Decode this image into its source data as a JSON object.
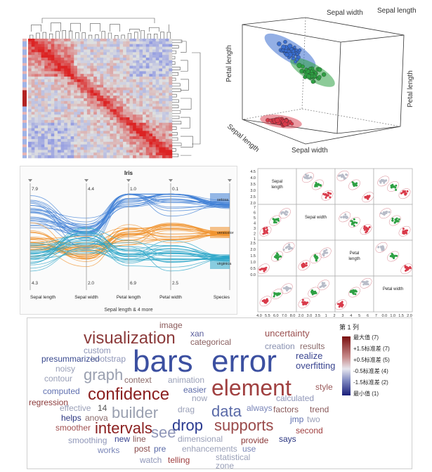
{
  "colors": {
    "setosa": "#3a6ecf",
    "versicolor": "#2ea043",
    "virginica": "#d93a4a",
    "pc_setosa": "#3f7fd6",
    "pc_versicolor": "#f0922b",
    "pc_virginica": "#29a5c8",
    "cloud_high": "#8b1a1a",
    "cloud_low": "#1a2a8b"
  },
  "chart_data": [
    {
      "type": "heatmap",
      "panel": "clustered-correlation-heatmap",
      "colormap": [
        "blue",
        "white",
        "red"
      ],
      "diagonal": "high",
      "dendrograms": [
        "top",
        "right"
      ]
    },
    {
      "type": "scatter",
      "panel": "iris-3d-scatter",
      "axes": {
        "x_label": "Sepal width",
        "x_label_2": "Sepal length",
        "y_label": "Petal length",
        "y_label_2": "Petal length",
        "z_label": "Sepal length",
        "z_label_2": "Sepal width"
      },
      "groups": [
        "setosa",
        "versicolor",
        "virginica"
      ]
    },
    {
      "type": "line",
      "panel": "parallel-coordinates",
      "title": "Iris",
      "axes": [
        "Sepal length",
        "Sepal width",
        "Petal length",
        "Petal width",
        "Species"
      ],
      "top_labels": [
        "7.9",
        "4.4",
        "1.0",
        "0.1",
        ""
      ],
      "bottom_labels": [
        "4.3",
        "2.0",
        "6.9",
        "2.5",
        ""
      ],
      "species": [
        "setosa",
        "versicolor",
        "virginica"
      ],
      "subtitle": "Sepal length & 4 more"
    },
    {
      "type": "scatter",
      "panel": "scatterplot-matrix",
      "variables": [
        "Sepal length",
        "Sepal width",
        "Petal length",
        "Petal width"
      ],
      "diagonal_labels": [
        "Sepal\nlength",
        "Sepal width",
        "Petal\nlength",
        "Petal width"
      ],
      "left_ticks": [
        [
          "4.5",
          "4.0",
          "3.5",
          "3.0",
          "2.5",
          "2.0"
        ],
        [
          "7",
          "6",
          "5",
          "4",
          "3",
          "2",
          "1"
        ],
        [
          "2.5",
          "2.0",
          "1.5",
          "1.0",
          "0.5",
          "0.0"
        ]
      ],
      "bottom_ticks": [
        "4.0",
        "5.5",
        "6.0",
        "7.0",
        "8.0",
        "2.0",
        "3.0",
        "3.5",
        "1",
        "2",
        "3",
        "4",
        "5",
        "6",
        "7",
        "0.0",
        "1.0",
        "1.5",
        "2.0"
      ]
    },
    {
      "type": "table",
      "panel": "word-cloud",
      "legend_title": "第 1 列",
      "legend_labels": [
        "最大值 (7)",
        "+1.5标准差 (7)",
        "+0.5标准差 (5)",
        "-0.5标准差 (4)",
        "-1.5标准差 (2)",
        "最小值 (1)"
      ],
      "words": [
        {
          "text": "image",
          "size": 12,
          "color": "#8a5a5a"
        },
        {
          "text": "xan",
          "size": 12,
          "color": "#5b5f9c"
        },
        {
          "text": "uncertainty",
          "size": 13,
          "color": "#9a4f4f"
        },
        {
          "text": "visualization",
          "size": 24,
          "color": "#8b3a3a"
        },
        {
          "text": "categorical",
          "size": 12,
          "color": "#8a6060"
        },
        {
          "text": "creation",
          "size": 12,
          "color": "#8890b0"
        },
        {
          "text": "results",
          "size": 12,
          "color": "#8a6a6a"
        },
        {
          "text": "custom",
          "size": 12,
          "color": "#8f96b8"
        },
        {
          "text": "bars",
          "size": 44,
          "color": "#3b4fa0"
        },
        {
          "text": "error",
          "size": 44,
          "color": "#3b4fa0"
        },
        {
          "text": "realize",
          "size": 13,
          "color": "#3a4590"
        },
        {
          "text": "presummarized",
          "size": 12,
          "color": "#3a4a8f"
        },
        {
          "text": "bootstrap",
          "size": 12,
          "color": "#8f96b8"
        },
        {
          "text": "overfitting",
          "size": 13,
          "color": "#3a4590"
        },
        {
          "text": "noisy",
          "size": 12,
          "color": "#9aa0b8"
        },
        {
          "text": "graph",
          "size": 22,
          "color": "#9aa0b0"
        },
        {
          "text": "contour",
          "size": 12,
          "color": "#9aa0b8"
        },
        {
          "text": "context",
          "size": 12,
          "color": "#8a6a6a"
        },
        {
          "text": "animation",
          "size": 12,
          "color": "#9aa0b8"
        },
        {
          "text": "element",
          "size": 32,
          "color": "#a04040"
        },
        {
          "text": "style",
          "size": 12,
          "color": "#9a5a5a"
        },
        {
          "text": "confidence",
          "size": 24,
          "color": "#8b2020"
        },
        {
          "text": "easier",
          "size": 12,
          "color": "#5b6aa8"
        },
        {
          "text": "computed",
          "size": 12,
          "color": "#6070b0"
        },
        {
          "text": "regression",
          "size": 12,
          "color": "#8b3a3a"
        },
        {
          "text": "now",
          "size": 12,
          "color": "#9aa0b8"
        },
        {
          "text": "calculated",
          "size": 12,
          "color": "#8f96b8"
        },
        {
          "text": "effective",
          "size": 12,
          "color": "#9aa0b8"
        },
        {
          "text": "14",
          "size": 12,
          "color": "#555"
        },
        {
          "text": "builder",
          "size": 22,
          "color": "#9aa0b0"
        },
        {
          "text": "data",
          "size": 22,
          "color": "#5a6aa8"
        },
        {
          "text": "always",
          "size": 12,
          "color": "#7a86b8"
        },
        {
          "text": "factors",
          "size": 12,
          "color": "#8a5a5a"
        },
        {
          "text": "trend",
          "size": 12,
          "color": "#8a5a5a"
        },
        {
          "text": "helps",
          "size": 12,
          "color": "#2a3580"
        },
        {
          "text": "anova",
          "size": 12,
          "color": "#8a6a6a"
        },
        {
          "text": "drag",
          "size": 12,
          "color": "#9aa0b8"
        },
        {
          "text": "jmp",
          "size": 12,
          "color": "#6070b0"
        },
        {
          "text": "two",
          "size": 12,
          "color": "#9aa0b8"
        },
        {
          "text": "smoother",
          "size": 12,
          "color": "#a05050"
        },
        {
          "text": "intervals",
          "size": 22,
          "color": "#8b2020"
        },
        {
          "text": "drop",
          "size": 22,
          "color": "#2a3a90"
        },
        {
          "text": "supports",
          "size": 22,
          "color": "#9a4a4a"
        },
        {
          "text": "second",
          "size": 12,
          "color": "#a04040"
        },
        {
          "text": "see",
          "size": 22,
          "color": "#8f96b8"
        },
        {
          "text": "smoothing",
          "size": 12,
          "color": "#8f96b8"
        },
        {
          "text": "new",
          "size": 12,
          "color": "#3a4590"
        },
        {
          "text": "line",
          "size": 12,
          "color": "#8a5a5a"
        },
        {
          "text": "dimensional",
          "size": 12,
          "color": "#9aa0b8"
        },
        {
          "text": "provide",
          "size": 12,
          "color": "#8b3a3a"
        },
        {
          "text": "says",
          "size": 12,
          "color": "#2a3580"
        },
        {
          "text": "works",
          "size": 12,
          "color": "#7a86b8"
        },
        {
          "text": "post",
          "size": 12,
          "color": "#8a4a4a"
        },
        {
          "text": "pre",
          "size": 12,
          "color": "#5a6aa8"
        },
        {
          "text": "enhancements",
          "size": 12,
          "color": "#9aa0b8"
        },
        {
          "text": "use",
          "size": 12,
          "color": "#7a86b8"
        },
        {
          "text": "statistical",
          "size": 12,
          "color": "#9aa0b8"
        },
        {
          "text": "watch",
          "size": 12,
          "color": "#8f96b8"
        },
        {
          "text": "telling",
          "size": 12,
          "color": "#a04040"
        },
        {
          "text": "zone",
          "size": 12,
          "color": "#9aa0b8"
        }
      ]
    }
  ]
}
